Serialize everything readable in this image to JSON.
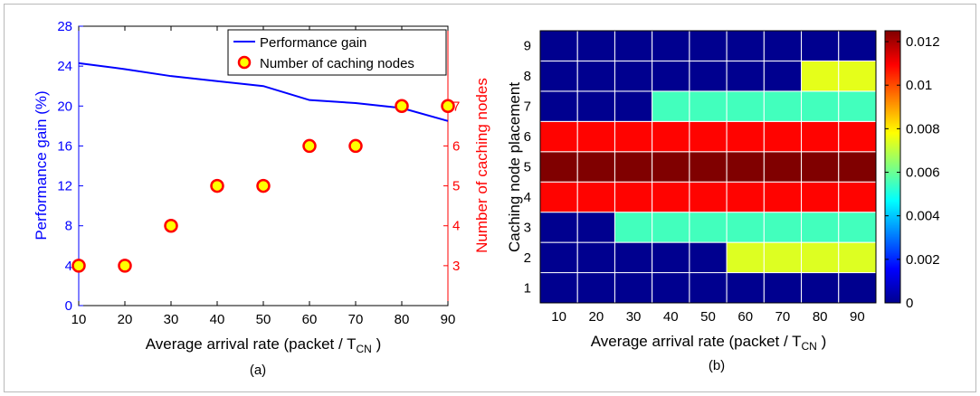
{
  "chart_data": [
    {
      "type": "line",
      "caption": "(a)",
      "xlabel": "Average arrival rate (packet / T",
      "xlabel_sub": "CN",
      "xlabel_end": " )",
      "ylabel_left": "Performance gain (%)",
      "ylabel_right": "Number of caching nodes",
      "xlim": [
        10,
        90
      ],
      "ylim_left": [
        0,
        28
      ],
      "ylim_right": [
        2,
        9
      ],
      "xticks": [
        "10",
        "20",
        "30",
        "40",
        "50",
        "60",
        "70",
        "80",
        "90"
      ],
      "yticks_left": [
        "0",
        "4",
        "8",
        "12",
        "16",
        "20",
        "24",
        "28"
      ],
      "yticks_right": [
        "3",
        "4",
        "5",
        "6",
        "7"
      ],
      "legend_position": "top-right",
      "colors": {
        "left_axis": "#0000ff",
        "right_axis": "#ff0000",
        "marker_fill": "#ffff00",
        "marker_edge": "#ff0000",
        "line": "#0000ff"
      },
      "series": [
        {
          "name": "Performance gain",
          "axis": "left",
          "x": [
            10,
            20,
            30,
            40,
            50,
            60,
            70,
            80,
            90
          ],
          "y": [
            24.3,
            23.7,
            23.0,
            22.5,
            22.0,
            20.6,
            20.3,
            19.8,
            18.5
          ]
        },
        {
          "name": "Number of caching nodes",
          "axis": "right",
          "x": [
            10,
            20,
            30,
            40,
            50,
            60,
            70,
            80,
            90
          ],
          "y": [
            3,
            3,
            4,
            5,
            5,
            6,
            6,
            7,
            7
          ]
        }
      ]
    },
    {
      "type": "heatmap",
      "caption": "(b)",
      "xlabel": "Average arrival rate (packet / T",
      "xlabel_sub": "CN",
      "xlabel_end": " )",
      "ylabel": "Caching node placement",
      "x": [
        "10",
        "20",
        "30",
        "40",
        "50",
        "60",
        "70",
        "80",
        "90"
      ],
      "y": [
        "1",
        "2",
        "3",
        "4",
        "5",
        "6",
        "7",
        "8",
        "9"
      ],
      "colorbar_ticks": [
        "0",
        "0.002",
        "0.004",
        "0.006",
        "0.008",
        "0.01",
        "0.012"
      ],
      "colorbar_range": [
        0,
        0.0125
      ],
      "values": [
        [
          0,
          0,
          0,
          0,
          0,
          0,
          0,
          0,
          0
        ],
        [
          0,
          0,
          0,
          0,
          0,
          0.0074,
          0.0074,
          0.0074,
          0.0074
        ],
        [
          0,
          0,
          0.0055,
          0.0055,
          0.0055,
          0.0055,
          0.0055,
          0.0055,
          0.0055
        ],
        [
          0.0109,
          0.0109,
          0.0109,
          0.0109,
          0.0109,
          0.0109,
          0.0109,
          0.0109,
          0.0109
        ],
        [
          0.0125,
          0.0125,
          0.0125,
          0.0125,
          0.0125,
          0.0125,
          0.0125,
          0.0125,
          0.0125
        ],
        [
          0.0109,
          0.0109,
          0.0109,
          0.0109,
          0.0109,
          0.0109,
          0.0109,
          0.0109,
          0.0109
        ],
        [
          0,
          0,
          0,
          0.0055,
          0.0055,
          0.0055,
          0.0055,
          0.0055,
          0.0055
        ],
        [
          0,
          0,
          0,
          0,
          0,
          0,
          0,
          0.0075,
          0.0075
        ],
        [
          0,
          0,
          0,
          0,
          0,
          0,
          0,
          0,
          0
        ]
      ]
    }
  ]
}
